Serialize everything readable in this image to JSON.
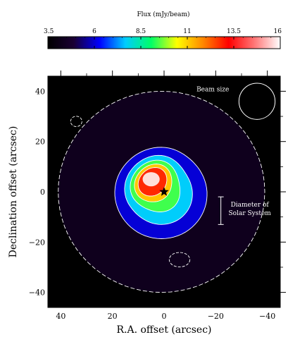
{
  "chart_data": {
    "type": "heatmap",
    "title": "",
    "xlabel": "R.A. offset (arcsec)",
    "ylabel": "Declination offset (arcsec)",
    "xlim": [
      45,
      -45
    ],
    "ylim": [
      -46,
      46
    ],
    "x_ticks": [
      40,
      20,
      0,
      -20,
      -40
    ],
    "x_tick_labels": [
      "40",
      "20",
      "0",
      "−20",
      "−40"
    ],
    "y_ticks": [
      40,
      20,
      0,
      -20,
      -40
    ],
    "y_tick_labels": [
      "40",
      "20",
      "0",
      "−20",
      "−40"
    ],
    "colorbar": {
      "label": "Flux (mJy/beam)",
      "min": 3.5,
      "max": 16,
      "ticks": [
        3.5,
        6,
        8.5,
        11,
        13.5,
        16
      ],
      "tick_labels": [
        "3.5",
        "6",
        "8.5",
        "11",
        "13.5",
        "16"
      ],
      "colormap": [
        "#000000",
        "#1a0033",
        "#0000ff",
        "#00ccff",
        "#00ff66",
        "#ffff00",
        "#ff8800",
        "#ff0000",
        "#ff7777",
        "#ffffff"
      ]
    },
    "source_peak": {
      "x": 5,
      "y": 5,
      "flux": 16
    },
    "star_marker": {
      "x": 0,
      "y": 0
    },
    "contour_levels": [
      3.5,
      5.2,
      6.9,
      8.6,
      10.3,
      12,
      13.7,
      15.4
    ],
    "beam": {
      "label": "Beam size",
      "x": -36,
      "y": 36,
      "diameter": 14
    },
    "scale_bar": {
      "label_line1": "Diameter of",
      "label_line2": "Solar System",
      "x": -22,
      "y_top": -2,
      "y_bottom": -13
    },
    "annotations": [
      "Beam size",
      "Diameter of Solar System"
    ],
    "grid": false,
    "legend": "none"
  }
}
